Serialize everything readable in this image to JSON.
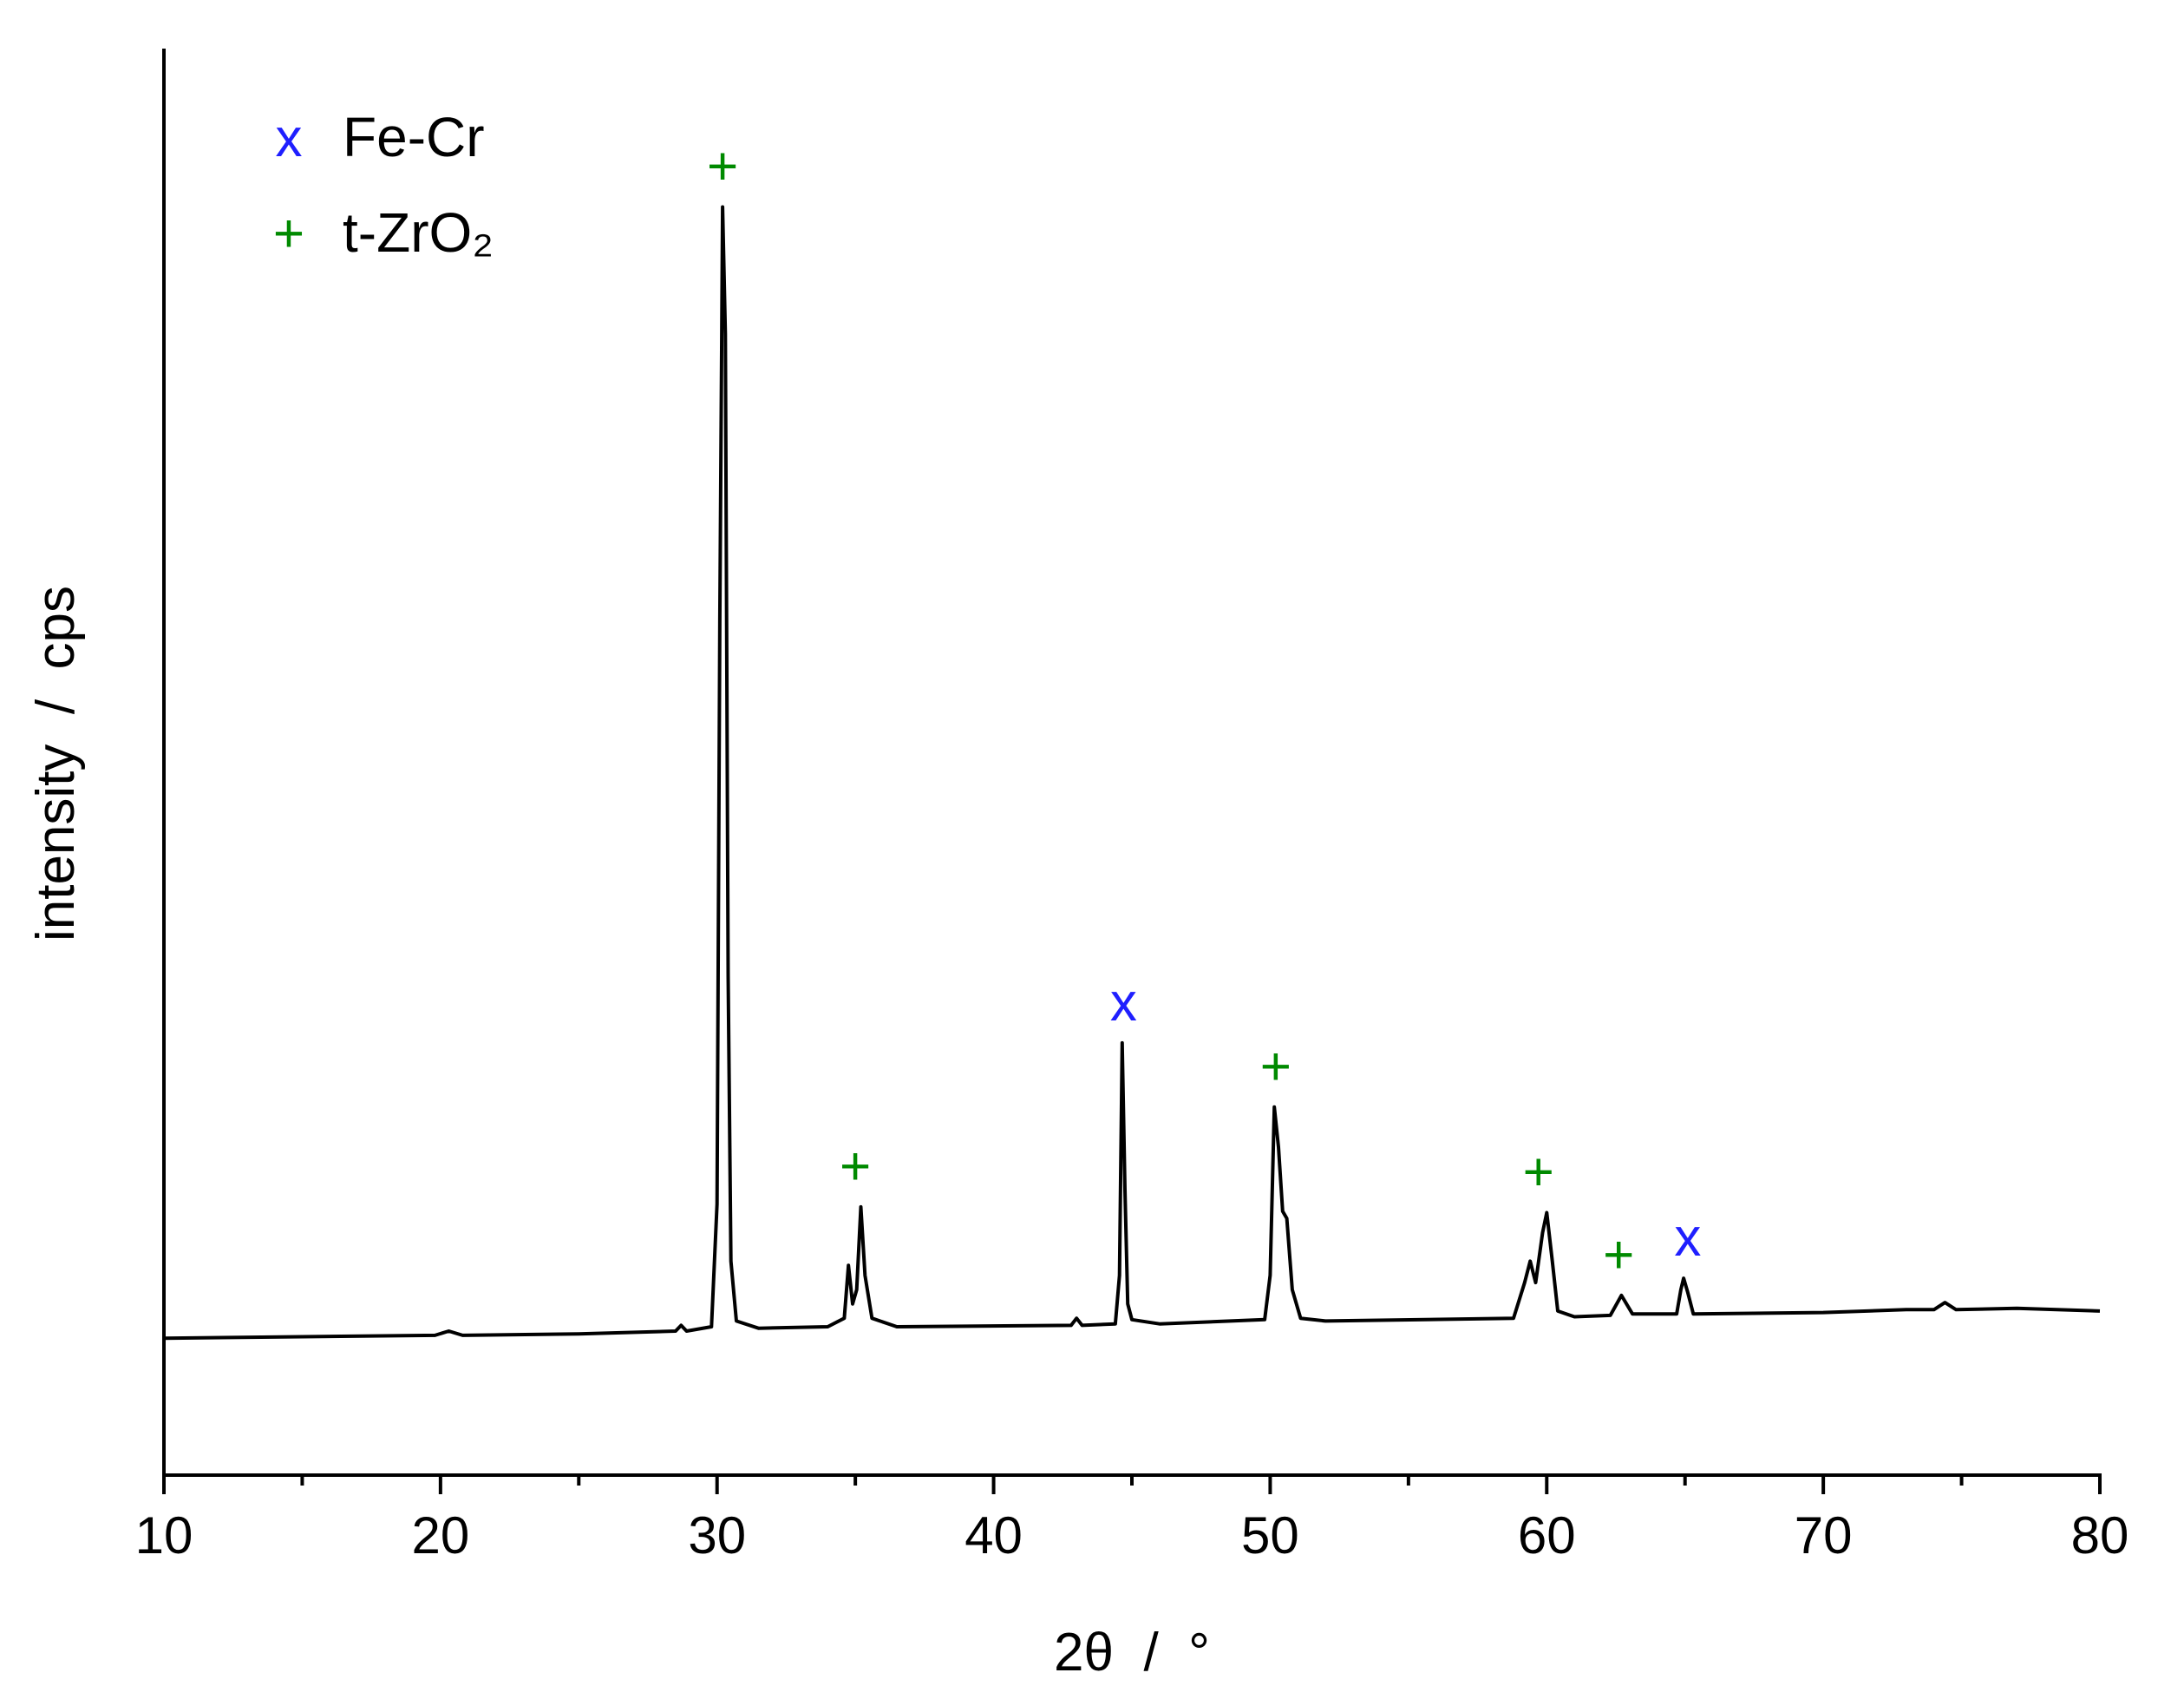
{
  "chart_data": {
    "type": "line",
    "xlabel": "2θ  /  °",
    "ylabel": "intensity  /  cps",
    "xlim": [
      10,
      80
    ],
    "xticks": [
      10,
      20,
      30,
      40,
      50,
      60,
      70,
      80
    ],
    "xminorticks": [
      15,
      25,
      35,
      45,
      55,
      65,
      75
    ],
    "ylim": [
      0,
      100
    ],
    "series": [
      {
        "color": "#000000",
        "x": [
          10,
          15,
          19.8,
          20.3,
          20.8,
          25,
          28.5,
          28.7,
          28.9,
          29.8,
          30.0,
          30.1,
          30.2,
          30.3,
          30.4,
          30.5,
          30.7,
          31.5,
          34,
          34.6,
          34.75,
          34.9,
          35.05,
          35.2,
          35.35,
          35.6,
          36.5,
          42.8,
          43,
          43.2,
          44.4,
          44.55,
          44.65,
          44.75,
          44.85,
          45.0,
          46,
          49.8,
          50.0,
          50.15,
          50.3,
          50.45,
          50.6,
          50.8,
          51.1,
          52,
          58.8,
          59.2,
          59.4,
          59.6,
          59.85,
          60.0,
          60.2,
          60.4,
          61,
          62.3,
          62.7,
          63.1,
          64.7,
          64.85,
          64.95,
          65.1,
          65.3,
          70,
          73,
          74.0,
          74.4,
          74.8,
          77,
          80
        ],
        "values": [
          9.6,
          9.7,
          9.8,
          10.1,
          9.8,
          9.9,
          10.1,
          10.5,
          10.1,
          10.4,
          19,
          60,
          88.9,
          80,
          35,
          15,
          10.8,
          10.3,
          10.4,
          11,
          14.7,
          12,
          13,
          18.8,
          14,
          11,
          10.4,
          10.5,
          11,
          10.5,
          10.6,
          14,
          30.3,
          20,
          12,
          10.9,
          10.6,
          10.9,
          14,
          25.8,
          23,
          18.5,
          18,
          13,
          11,
          10.8,
          11,
          13.5,
          15,
          13.5,
          17,
          18.4,
          15,
          11.5,
          11.1,
          11.2,
          12.6,
          11.3,
          11.3,
          13,
          13.8,
          12.8,
          11.3,
          11.4,
          11.6,
          11.6,
          12.1,
          11.6,
          11.7,
          11.5
        ]
      }
    ],
    "legend": [
      {
        "symbol": "x",
        "name": "Fe-Cr",
        "color": "#1f1fff"
      },
      {
        "symbol": "+",
        "name": "t-ZrO₂",
        "color": "#008a00"
      }
    ],
    "annotations": [
      {
        "text": "+",
        "x": 30.2,
        "color": "#008a00"
      },
      {
        "text": "+",
        "x": 35.0,
        "color": "#008a00"
      },
      {
        "text": "x",
        "x": 44.7,
        "color": "#1f1fff"
      },
      {
        "text": "+",
        "x": 50.2,
        "color": "#008a00"
      },
      {
        "text": "+",
        "x": 59.7,
        "color": "#008a00"
      },
      {
        "text": "+",
        "x": 62.6,
        "color": "#008a00"
      },
      {
        "text": "x",
        "x": 65.1,
        "color": "#1f1fff"
      }
    ]
  }
}
